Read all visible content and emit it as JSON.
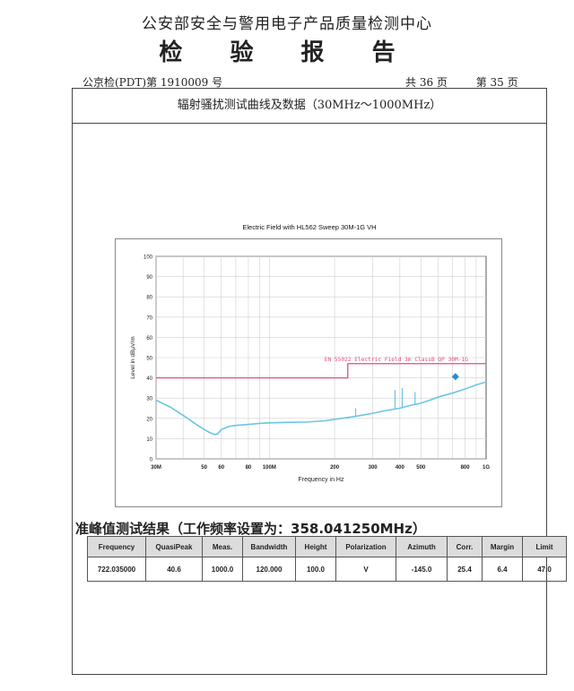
{
  "header": {
    "organization": "公安部安全与警用电子产品质量检测中心",
    "title": "检 验 报 告",
    "report_no": "公京检(PDT)第 1910009 号",
    "total_pages": "共 36 页",
    "current_page": "第 35 页"
  },
  "section_title": "辐射骚扰测试曲线及数据（30MHz～1000MHz）",
  "quasi_peak": {
    "heading": "准峰值测试结果（工作频率设置为：358.041250MHz）",
    "columns": [
      "Frequency",
      "QuasiPeak",
      "Meas.",
      "Bandwidth",
      "Height",
      "Polarization",
      "Azimuth",
      "Corr.",
      "Margin",
      "Limit"
    ],
    "rows": [
      [
        "722.035000",
        "40.6",
        "1000.0",
        "120.000",
        "100.0",
        "V",
        "-145.0",
        "25.4",
        "6.4",
        "47.0"
      ]
    ]
  },
  "chart_data": {
    "type": "line",
    "title": "Electric Field with HL562 Sweep 30M-1G VH",
    "xlabel": "Frequency in Hz",
    "ylabel": "Level in dBµV/m",
    "x_scale": "log",
    "xlim": [
      30,
      1000
    ],
    "ylim": [
      0,
      100
    ],
    "x_ticks": [
      {
        "value": 30,
        "label": "30M"
      },
      {
        "value": 50,
        "label": "50"
      },
      {
        "value": 60,
        "label": "60"
      },
      {
        "value": 80,
        "label": "80"
      },
      {
        "value": 100,
        "label": "100M"
      },
      {
        "value": 200,
        "label": "200"
      },
      {
        "value": 300,
        "label": "300"
      },
      {
        "value": 400,
        "label": "400"
      },
      {
        "value": 500,
        "label": "500"
      },
      {
        "value": 800,
        "label": "800"
      },
      {
        "value": 1000,
        "label": "1G"
      }
    ],
    "y_ticks": [
      0,
      10,
      20,
      30,
      40,
      50,
      60,
      70,
      80,
      90,
      100
    ],
    "grid": true,
    "limit_line": {
      "name": "EN 55022 Electric Field 3m ClassB QP 30M-1G",
      "color": "#e0507a",
      "x": [
        30,
        230,
        230,
        1000
      ],
      "y": [
        40,
        40,
        47,
        47
      ]
    },
    "series": [
      {
        "color": "#6ac6e2",
        "x": [
          30,
          32,
          35,
          38,
          42,
          46,
          50,
          53,
          56,
          58,
          60,
          65,
          70,
          80,
          90,
          100,
          120,
          150,
          180,
          200,
          250,
          300,
          350,
          400,
          450,
          500,
          550,
          600,
          700,
          800,
          900,
          1000
        ],
        "y": [
          29,
          27.5,
          25.5,
          23,
          20,
          17,
          14.5,
          13,
          12,
          12.5,
          14.5,
          16,
          16.5,
          17,
          17.5,
          17.8,
          18,
          18.2,
          18.8,
          19.5,
          21,
          22.5,
          24,
          25,
          26.5,
          27.5,
          29,
          30.5,
          32.5,
          34.5,
          36.5,
          38
        ]
      }
    ],
    "spikes": [
      {
        "x": 380,
        "y": 34
      },
      {
        "x": 410,
        "y": 35
      },
      {
        "x": 470,
        "y": 33
      },
      {
        "x": 250,
        "y": 25
      }
    ],
    "marker": {
      "x": 722.035,
      "y": 40.6,
      "color": "#2a8ad4"
    }
  }
}
